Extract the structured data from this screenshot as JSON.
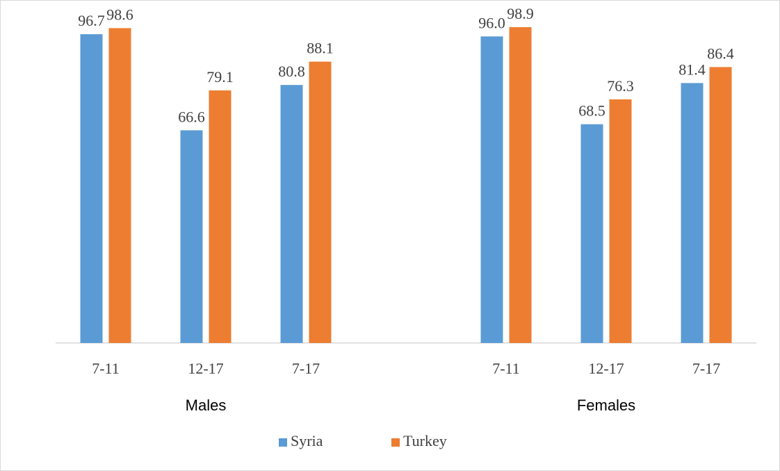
{
  "chart_data": {
    "type": "bar",
    "categories": [
      "7-11",
      "12-17",
      "7-17",
      null,
      "7-11",
      "12-17",
      "7-17"
    ],
    "group_labels": [
      "Males",
      "Females"
    ],
    "series": [
      {
        "name": "Syria",
        "color": "#5b9bd5",
        "values": [
          96.7,
          66.6,
          80.8,
          null,
          96.0,
          68.5,
          81.4
        ],
        "value_labels": [
          "96.7",
          "66.6",
          "80.8",
          null,
          "96.0",
          "68.5",
          "81.4"
        ]
      },
      {
        "name": "Turkey",
        "color": "#ed7d31",
        "values": [
          98.6,
          79.1,
          88.1,
          null,
          98.9,
          76.3,
          86.4
        ],
        "value_labels": [
          "98.6",
          "79.1",
          "88.1",
          null,
          "98.9",
          "76.3",
          "86.4"
        ]
      }
    ],
    "ylim": [
      0,
      100
    ],
    "legend": "bottom"
  }
}
